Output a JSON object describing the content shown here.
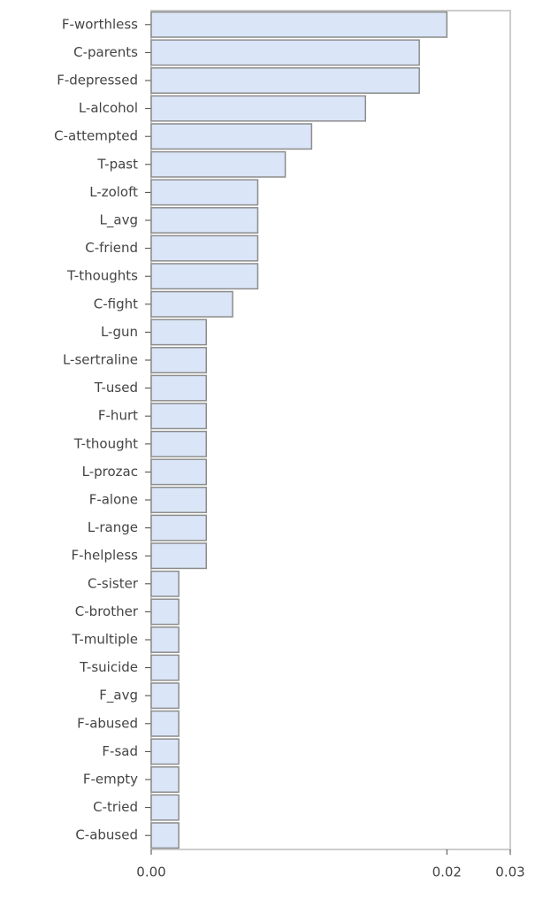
{
  "chart_data": {
    "type": "hbar",
    "categories": [
      "F-worthless",
      "C-parents",
      "F-depressed",
      "L-alcohol",
      "C-attempted",
      "T-past",
      "L-zoloft",
      "L_avg",
      "C-friend",
      "T-thoughts",
      "C-fight",
      "L-gun",
      "L-sertraline",
      "T-used",
      "F-hurt",
      "T-thought",
      "L-prozac",
      "F-alone",
      "L-range",
      "F-helpless",
      "C-sister",
      "C-brother",
      "T-multiple",
      "T-suicide",
      "F_avg",
      "F-abused",
      "F-sad",
      "F-empty",
      "C-tried",
      "C-abused"
    ],
    "values": [
      0.0247,
      0.0224,
      0.0224,
      0.0179,
      0.0134,
      0.0112,
      0.0089,
      0.0089,
      0.0089,
      0.0089,
      0.0068,
      0.0046,
      0.0046,
      0.0046,
      0.0046,
      0.0046,
      0.0046,
      0.0046,
      0.0046,
      0.0046,
      0.0023,
      0.0023,
      0.0023,
      0.0023,
      0.0023,
      0.0023,
      0.0023,
      0.0023,
      0.0023,
      0.0023
    ],
    "color": "#dae5f7",
    "xlim": [
      0,
      0.03
    ],
    "xticks": [
      {
        "value": 0,
        "label": "0.00"
      },
      {
        "value": 0.0247,
        "label": "0.02"
      },
      0.03
    ],
    "grid": false
  }
}
